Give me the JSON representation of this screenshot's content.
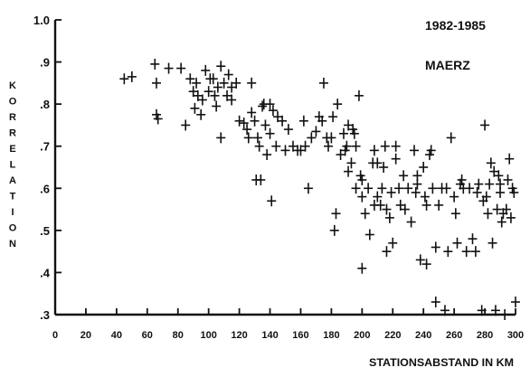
{
  "chart_data": {
    "type": "scatter",
    "title": "1982-1985",
    "subtitle": "MAERZ",
    "xlabel": "STATIONSABSTAND IN KM",
    "ylabel": "KORRELATION",
    "xlim": [
      0,
      300
    ],
    "ylim": [
      0.3,
      1.0
    ],
    "xticks": [
      "0",
      "20",
      "40",
      "60",
      "80",
      "100",
      "120",
      "140",
      "160",
      "180",
      "200",
      "220",
      "240",
      "260",
      "280",
      "300"
    ],
    "yticks": [
      "1.0",
      ".9",
      ".8",
      ".7",
      ".6",
      ".5",
      ".4",
      ".3"
    ],
    "grid": false,
    "marker": "plus",
    "series": [
      {
        "points": [
          [
            45,
            0.86
          ],
          [
            50,
            0.865
          ],
          [
            65,
            0.895
          ],
          [
            66,
            0.85
          ],
          [
            67,
            0.765
          ],
          [
            66,
            0.775
          ],
          [
            74,
            0.885
          ],
          [
            82,
            0.885
          ],
          [
            85,
            0.75
          ],
          [
            88,
            0.86
          ],
          [
            90,
            0.83
          ],
          [
            92,
            0.85
          ],
          [
            91,
            0.79
          ],
          [
            93,
            0.82
          ],
          [
            95,
            0.775
          ],
          [
            96,
            0.81
          ],
          [
            98,
            0.88
          ],
          [
            100,
            0.83
          ],
          [
            101,
            0.86
          ],
          [
            103,
            0.86
          ],
          [
            104,
            0.82
          ],
          [
            105,
            0.795
          ],
          [
            106,
            0.84
          ],
          [
            108,
            0.72
          ],
          [
            108,
            0.89
          ],
          [
            110,
            0.85
          ],
          [
            112,
            0.82
          ],
          [
            113,
            0.87
          ],
          [
            115,
            0.84
          ],
          [
            115,
            0.81
          ],
          [
            118,
            0.85
          ],
          [
            120,
            0.76
          ],
          [
            123,
            0.755
          ],
          [
            125,
            0.74
          ],
          [
            126,
            0.72
          ],
          [
            128,
            0.78
          ],
          [
            128,
            0.85
          ],
          [
            130,
            0.76
          ],
          [
            131,
            0.62
          ],
          [
            132,
            0.72
          ],
          [
            133,
            0.7
          ],
          [
            134,
            0.62
          ],
          [
            135,
            0.795
          ],
          [
            136,
            0.8
          ],
          [
            137,
            0.75
          ],
          [
            138,
            0.68
          ],
          [
            140,
            0.73
          ],
          [
            140,
            0.8
          ],
          [
            141,
            0.57
          ],
          [
            142,
            0.785
          ],
          [
            144,
            0.7
          ],
          [
            145,
            0.77
          ],
          [
            148,
            0.76
          ],
          [
            150,
            0.69
          ],
          [
            152,
            0.74
          ],
          [
            155,
            0.7
          ],
          [
            158,
            0.69
          ],
          [
            160,
            0.69
          ],
          [
            162,
            0.76
          ],
          [
            163,
            0.7
          ],
          [
            165,
            0.6
          ],
          [
            167,
            0.72
          ],
          [
            170,
            0.735
          ],
          [
            172,
            0.77
          ],
          [
            174,
            0.76
          ],
          [
            175,
            0.85
          ],
          [
            177,
            0.72
          ],
          [
            178,
            0.7
          ],
          [
            180,
            0.72
          ],
          [
            181,
            0.77
          ],
          [
            182,
            0.5
          ],
          [
            183,
            0.54
          ],
          [
            184,
            0.8
          ],
          [
            186,
            0.68
          ],
          [
            188,
            0.73
          ],
          [
            189,
            0.69
          ],
          [
            190,
            0.7
          ],
          [
            191,
            0.75
          ],
          [
            191,
            0.64
          ],
          [
            193,
            0.66
          ],
          [
            194,
            0.74
          ],
          [
            195,
            0.73
          ],
          [
            196,
            0.6
          ],
          [
            196,
            0.7
          ],
          [
            198,
            0.82
          ],
          [
            199,
            0.63
          ],
          [
            200,
            0.58
          ],
          [
            200,
            0.62
          ],
          [
            200,
            0.41
          ],
          [
            202,
            0.54
          ],
          [
            204,
            0.6
          ],
          [
            205,
            0.49
          ],
          [
            207,
            0.66
          ],
          [
            208,
            0.56
          ],
          [
            208,
            0.69
          ],
          [
            210,
            0.66
          ],
          [
            210,
            0.58
          ],
          [
            212,
            0.56
          ],
          [
            213,
            0.6
          ],
          [
            214,
            0.65
          ],
          [
            215,
            0.7
          ],
          [
            216,
            0.55
          ],
          [
            216,
            0.45
          ],
          [
            218,
            0.53
          ],
          [
            219,
            0.59
          ],
          [
            220,
            0.47
          ],
          [
            222,
            0.7
          ],
          [
            222,
            0.67
          ],
          [
            224,
            0.6
          ],
          [
            225,
            0.56
          ],
          [
            227,
            0.63
          ],
          [
            228,
            0.55
          ],
          [
            230,
            0.6
          ],
          [
            232,
            0.52
          ],
          [
            234,
            0.69
          ],
          [
            235,
            0.59
          ],
          [
            236,
            0.63
          ],
          [
            236,
            0.61
          ],
          [
            238,
            0.43
          ],
          [
            240,
            0.65
          ],
          [
            241,
            0.58
          ],
          [
            242,
            0.56
          ],
          [
            242,
            0.42
          ],
          [
            244,
            0.68
          ],
          [
            245,
            0.69
          ],
          [
            246,
            0.6
          ],
          [
            248,
            0.33
          ],
          [
            248,
            0.46
          ],
          [
            250,
            0.56
          ],
          [
            252,
            0.6
          ],
          [
            254,
            0.31
          ],
          [
            255,
            0.6
          ],
          [
            256,
            0.45
          ],
          [
            258,
            0.72
          ],
          [
            260,
            0.58
          ],
          [
            261,
            0.54
          ],
          [
            262,
            0.47
          ],
          [
            264,
            0.61
          ],
          [
            265,
            0.62
          ],
          [
            266,
            0.6
          ],
          [
            268,
            0.45
          ],
          [
            270,
            0.6
          ],
          [
            272,
            0.48
          ],
          [
            274,
            0.45
          ],
          [
            275,
            0.59
          ],
          [
            276,
            0.61
          ],
          [
            278,
            0.31
          ],
          [
            279,
            0.57
          ],
          [
            280,
            0.75
          ],
          [
            281,
            0.58
          ],
          [
            282,
            0.54
          ],
          [
            283,
            0.61
          ],
          [
            284,
            0.66
          ],
          [
            285,
            0.47
          ],
          [
            286,
            0.64
          ],
          [
            287,
            0.31
          ],
          [
            288,
            0.55
          ],
          [
            289,
            0.63
          ],
          [
            290,
            0.59
          ],
          [
            290,
            0.61
          ],
          [
            291,
            0.52
          ],
          [
            292,
            0.54
          ],
          [
            293,
            0.3
          ],
          [
            294,
            0.55
          ],
          [
            295,
            0.62
          ],
          [
            296,
            0.67
          ],
          [
            297,
            0.53
          ],
          [
            298,
            0.6
          ],
          [
            299,
            0.59
          ],
          [
            300,
            0.33
          ]
        ]
      }
    ]
  }
}
